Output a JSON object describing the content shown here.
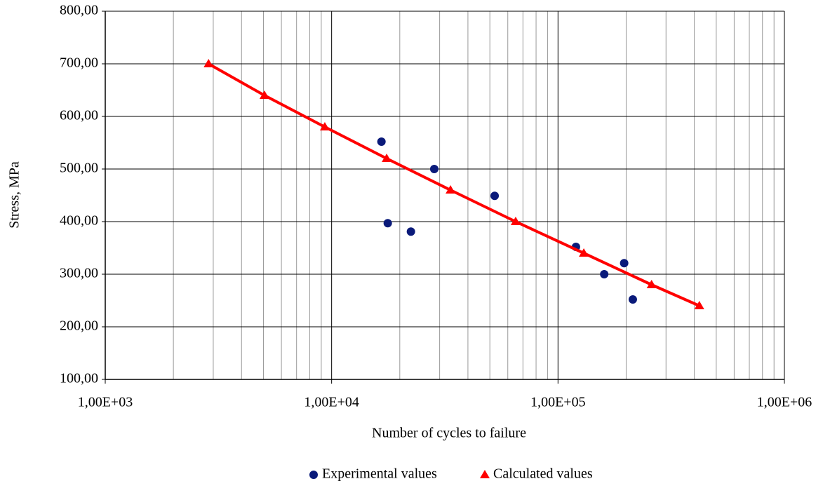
{
  "chart_data": {
    "type": "scatter",
    "xlabel": "Number of cycles  to failure",
    "ylabel": "Stress,  MPa",
    "xscale": "log",
    "grid": true,
    "legend": "bottom",
    "xlim": [
      1000,
      1000000
    ],
    "ylim": [
      100,
      800
    ],
    "xticks": [
      {
        "value": 1000,
        "label": "1,00E+03"
      },
      {
        "value": 10000,
        "label": "1,00E+04"
      },
      {
        "value": 100000,
        "label": "1,00E+05"
      },
      {
        "value": 1000000,
        "label": "1,00E+06"
      }
    ],
    "xminorticks": [
      2000,
      3000,
      4000,
      5000,
      6000,
      7000,
      8000,
      9000,
      20000,
      30000,
      40000,
      50000,
      60000,
      70000,
      80000,
      90000,
      200000,
      300000,
      400000,
      500000,
      600000,
      700000,
      800000,
      900000
    ],
    "yticks": [
      {
        "value": 100,
        "label": "100,00"
      },
      {
        "value": 200,
        "label": "200,00"
      },
      {
        "value": 300,
        "label": "300,00"
      },
      {
        "value": 400,
        "label": "400,00"
      },
      {
        "value": 500,
        "label": "500,00"
      },
      {
        "value": 600,
        "label": "600,00"
      },
      {
        "value": 700,
        "label": "700,00"
      },
      {
        "value": 800,
        "label": "800,00"
      }
    ],
    "series": [
      {
        "name": "Experimental values",
        "color": "#0a1a7a",
        "marker": "circle",
        "line": false,
        "x": [
          16600,
          17700,
          22400,
          28400,
          52500,
          120000,
          160000,
          196000,
          214000
        ],
        "values": [
          552,
          397,
          381,
          500,
          449,
          352,
          300,
          321,
          252
        ]
      },
      {
        "name": "Calculated values",
        "color": "#ff0000",
        "marker": "triangle",
        "line": true,
        "x": [
          2860,
          5050,
          9330,
          17500,
          33500,
          65000,
          130000,
          259000,
          421000
        ],
        "values": [
          700,
          640,
          580,
          520,
          460,
          400,
          340,
          280,
          240
        ]
      }
    ]
  }
}
